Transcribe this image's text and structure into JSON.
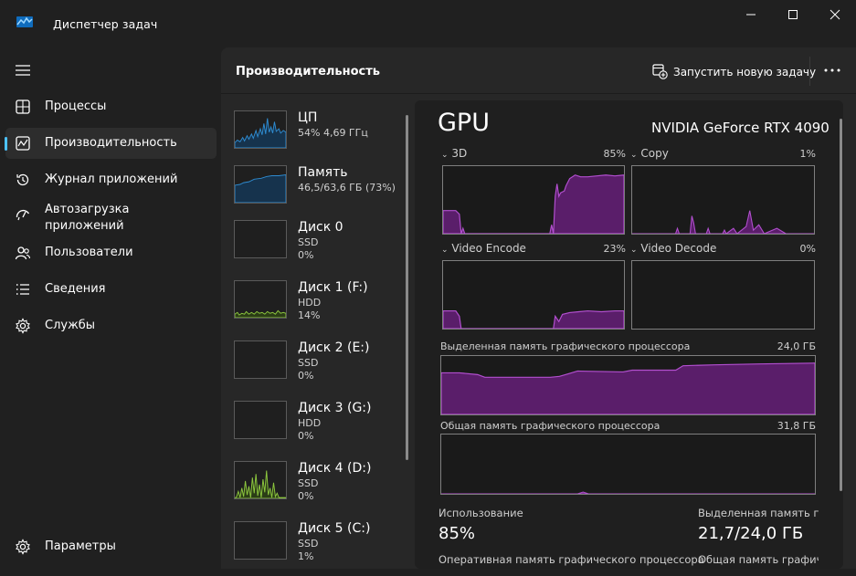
{
  "window": {
    "title": "Диспетчер задач",
    "icons": {
      "app": "task-manager-icon",
      "minimize": "minimize-icon",
      "maximize": "maximize-icon",
      "close": "close-icon"
    }
  },
  "sidebar": {
    "items": [
      {
        "label": "Процессы",
        "icon": "processes-grid-icon"
      },
      {
        "label": "Производительность",
        "icon": "performance-chart-icon",
        "active": true
      },
      {
        "label": "Журнал приложений",
        "icon": "history-icon"
      },
      {
        "label": "Автозагрузка\nприложений",
        "icon": "startup-gauge-icon"
      },
      {
        "label": "Пользователи",
        "icon": "users-icon"
      },
      {
        "label": "Сведения",
        "icon": "details-list-icon"
      },
      {
        "label": "Службы",
        "icon": "services-gear-icon"
      }
    ],
    "settings_label": "Параметры",
    "accent": "#4cc2ff"
  },
  "header": {
    "title": "Производительность",
    "new_task_label": "Запустить новую задачу",
    "more_icon": "more-dots-icon"
  },
  "devices": [
    {
      "name": "ЦП",
      "line1": "54%  4,69 ГГц",
      "line2": ""
    },
    {
      "name": "Память",
      "line1": "46,5/63,6 ГБ (73%)",
      "line2": ""
    },
    {
      "name": "Диск 0",
      "line1": "SSD",
      "line2": "0%"
    },
    {
      "name": "Диск 1 (F:)",
      "line1": "HDD",
      "line2": "14%"
    },
    {
      "name": "Диск 2 (E:)",
      "line1": "SSD",
      "line2": "0%"
    },
    {
      "name": "Диск 3 (G:)",
      "line1": "HDD",
      "line2": "0%"
    },
    {
      "name": "Диск 4 (D:)",
      "line1": "SSD",
      "line2": "0%"
    },
    {
      "name": "Диск 5 (C:)",
      "line1": "SSD",
      "line2": "1%"
    }
  ],
  "gpu": {
    "title": "GPU",
    "model": "NVIDIA GeForce RTX 4090",
    "engines": [
      {
        "label": "3D",
        "percent": "85%"
      },
      {
        "label": "Copy",
        "percent": "1%"
      },
      {
        "label": "Video Encode",
        "percent": "23%"
      },
      {
        "label": "Video Decode",
        "percent": "0%"
      }
    ],
    "dedicated_memory": {
      "label": "Выделенная память графического процессора",
      "max": "24,0 ГБ"
    },
    "shared_memory": {
      "label": "Общая память графического процессора",
      "max": "31,8 ГБ"
    },
    "stats": {
      "utilization_label": "Использование",
      "utilization_value": "85%",
      "dedicated_label": "Выделенная память гра",
      "dedicated_value": "21,7/24,0 ГБ",
      "gpu_memory_label": "Оперативная память графического процессора",
      "shared_label": "Общая память графиче"
    },
    "colors": {
      "gpu": "#b24fcf",
      "gpu_fill": "#5a1e6a",
      "cpu": "#2e8bd0",
      "disk": "#8cc63e"
    }
  }
}
